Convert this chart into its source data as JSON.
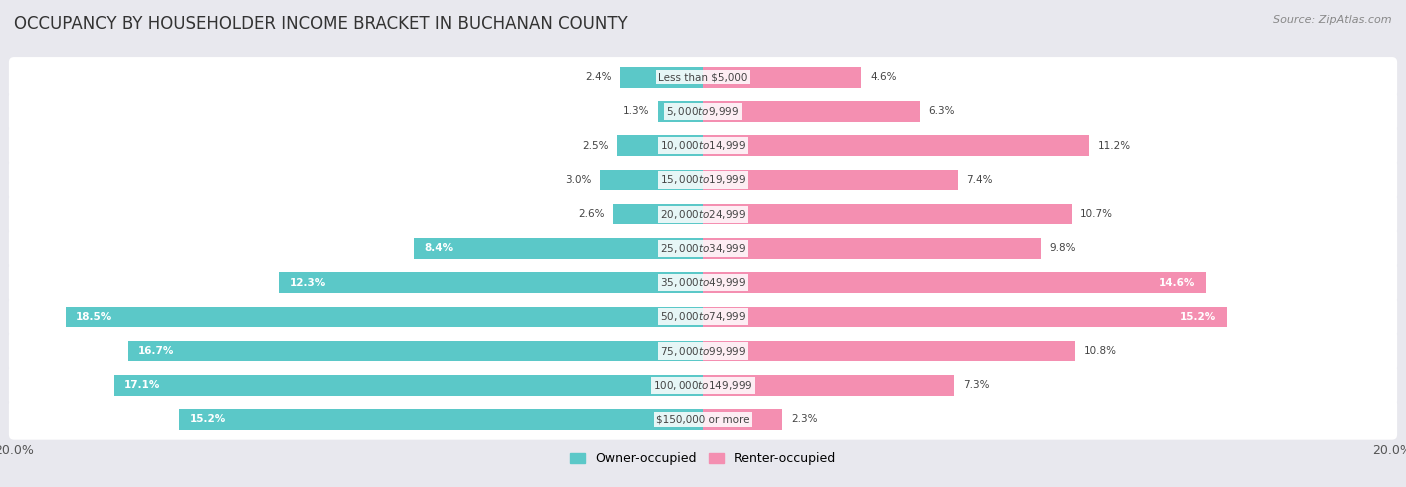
{
  "title": "OCCUPANCY BY HOUSEHOLDER INCOME BRACKET IN BUCHANAN COUNTY",
  "source": "Source: ZipAtlas.com",
  "categories": [
    "Less than $5,000",
    "$5,000 to $9,999",
    "$10,000 to $14,999",
    "$15,000 to $19,999",
    "$20,000 to $24,999",
    "$25,000 to $34,999",
    "$35,000 to $49,999",
    "$50,000 to $74,999",
    "$75,000 to $99,999",
    "$100,000 to $149,999",
    "$150,000 or more"
  ],
  "owner_values": [
    2.4,
    1.3,
    2.5,
    3.0,
    2.6,
    8.4,
    12.3,
    18.5,
    16.7,
    17.1,
    15.2
  ],
  "renter_values": [
    4.6,
    6.3,
    11.2,
    7.4,
    10.7,
    9.8,
    14.6,
    15.2,
    10.8,
    7.3,
    2.3
  ],
  "owner_color": "#5BC8C8",
  "renter_color": "#F48FB1",
  "owner_label": "Owner-occupied",
  "renter_label": "Renter-occupied",
  "max_value": 20.0,
  "background_color": "#e8e8ee",
  "bar_background": "#ffffff",
  "title_fontsize": 12,
  "label_fontsize": 8,
  "axis_label_fontsize": 9,
  "owner_inside_threshold": 8.0,
  "renter_inside_threshold": 14.0
}
